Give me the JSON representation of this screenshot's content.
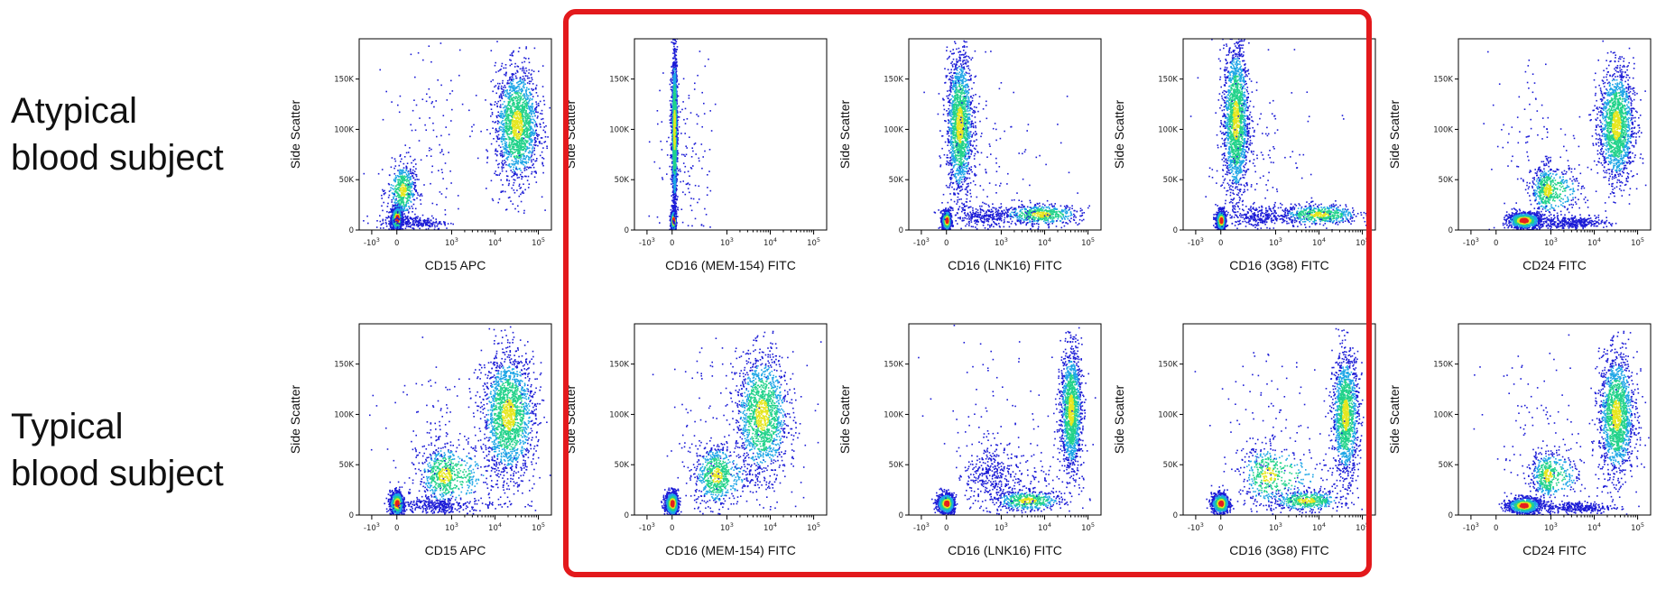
{
  "row_labels": [
    {
      "line1": "Atypical",
      "line2": "blood subject"
    },
    {
      "line1": "Typical",
      "line2": "blood subject"
    }
  ],
  "highlight_color": "#e3191c",
  "density_colors": [
    "#1b1bd6",
    "#1ea6e6",
    "#22d38a",
    "#e6e61e",
    "#e61e1e"
  ],
  "chart_data": [
    {
      "type": "scatter",
      "row": "Atypical blood subject",
      "xlabel": "CD15 APC",
      "ylabel": "Side Scatter",
      "xscale": "biexponential",
      "xticks": [
        "-10^3",
        "0",
        "10^3",
        "10^4",
        "10^5"
      ],
      "yticks": [
        "0",
        "50K",
        "100K",
        "150K"
      ],
      "ylim": [
        0,
        190000
      ],
      "populations": [
        {
          "x_log": 0,
          "y": 12000,
          "sx": 0.12,
          "sy": 6000,
          "n": 1100,
          "hot": true
        },
        {
          "x_log": 0.3,
          "y": 40000,
          "sx": 0.35,
          "sy": 13000,
          "n": 500
        },
        {
          "x_log": 1.0,
          "y": 8000,
          "sx": 0.9,
          "sy": 3500,
          "n": 250
        },
        {
          "x_log": 4.5,
          "y": 105000,
          "sx": 0.25,
          "sy": 28000,
          "n": 1700
        },
        {
          "x_log": 2.5,
          "y": 90000,
          "sx": 1.5,
          "sy": 50000,
          "n": 150
        }
      ]
    },
    {
      "type": "scatter",
      "row": "Atypical blood subject",
      "xlabel": "CD16 (MEM-154) FITC",
      "ylabel": "Side Scatter",
      "xscale": "biexponential",
      "xticks": [
        "-10^3",
        "0",
        "10^3",
        "10^4",
        "10^5"
      ],
      "yticks": [
        "0",
        "50K",
        "100K",
        "150K"
      ],
      "ylim": [
        0,
        190000
      ],
      "populations": [
        {
          "x_log": 0.05,
          "y": 10000,
          "sx": 0.06,
          "sy": 5000,
          "n": 900,
          "hot": true
        },
        {
          "x_log": 0.1,
          "y": 100000,
          "sx": 0.07,
          "sy": 38000,
          "n": 1900
        },
        {
          "x_log": 0.8,
          "y": 60000,
          "sx": 0.8,
          "sy": 50000,
          "n": 150
        }
      ]
    },
    {
      "type": "scatter",
      "row": "Atypical blood subject",
      "xlabel": "CD16 (LNK16) FITC",
      "ylabel": "Side Scatter",
      "xscale": "biexponential",
      "xticks": [
        "-10^3",
        "0",
        "10^3",
        "10^4",
        "10^5"
      ],
      "yticks": [
        "0",
        "50K",
        "100K",
        "150K"
      ],
      "ylim": [
        0,
        190000
      ],
      "populations": [
        {
          "x_log": 0,
          "y": 10000,
          "sx": 0.1,
          "sy": 5000,
          "n": 900,
          "hot": true
        },
        {
          "x_log": 0.7,
          "y": 105000,
          "sx": 0.35,
          "sy": 35000,
          "n": 1700
        },
        {
          "x_log": 3.9,
          "y": 16000,
          "sx": 0.45,
          "sy": 5000,
          "n": 550
        },
        {
          "x_log": 2.2,
          "y": 14000,
          "sx": 0.9,
          "sy": 5000,
          "n": 300
        },
        {
          "x_log": 2.0,
          "y": 70000,
          "sx": 1.3,
          "sy": 45000,
          "n": 120
        }
      ]
    },
    {
      "type": "scatter",
      "row": "Atypical blood subject",
      "xlabel": "CD16 (3G8) FITC",
      "ylabel": "Side Scatter",
      "xscale": "biexponential",
      "xticks": [
        "-10^3",
        "0",
        "10^3",
        "10^4",
        "10^5"
      ],
      "yticks": [
        "0",
        "50K",
        "100K",
        "150K"
      ],
      "ylim": [
        0,
        190000
      ],
      "populations": [
        {
          "x_log": 0,
          "y": 10000,
          "sx": 0.1,
          "sy": 5000,
          "n": 900,
          "hot": true
        },
        {
          "x_log": 0.8,
          "y": 110000,
          "sx": 0.35,
          "sy": 38000,
          "n": 1800
        },
        {
          "x_log": 4.0,
          "y": 16000,
          "sx": 0.45,
          "sy": 5000,
          "n": 550
        },
        {
          "x_log": 2.2,
          "y": 14000,
          "sx": 0.9,
          "sy": 5000,
          "n": 300
        },
        {
          "x_log": 2.0,
          "y": 80000,
          "sx": 1.3,
          "sy": 45000,
          "n": 120
        }
      ]
    },
    {
      "type": "scatter",
      "row": "Atypical blood subject",
      "xlabel": "CD24 FITC",
      "ylabel": "Side Scatter",
      "xscale": "biexponential",
      "xticks": [
        "-10^3",
        "0",
        "10^3",
        "10^4",
        "10^5"
      ],
      "yticks": [
        "0",
        "50K",
        "100K",
        "150K"
      ],
      "ylim": [
        0,
        190000
      ],
      "populations": [
        {
          "x_log": 1.5,
          "y": 10000,
          "sx": 0.45,
          "sy": 4000,
          "n": 1000,
          "hot": true
        },
        {
          "x_log": 2.8,
          "y": 40000,
          "sx": 0.45,
          "sy": 12000,
          "n": 600
        },
        {
          "x_log": 3.5,
          "y": 8000,
          "sx": 0.4,
          "sy": 3000,
          "n": 350
        },
        {
          "x_log": 4.5,
          "y": 105000,
          "sx": 0.2,
          "sy": 28000,
          "n": 1600
        },
        {
          "x_log": 2.5,
          "y": 80000,
          "sx": 1.5,
          "sy": 50000,
          "n": 120
        }
      ]
    },
    {
      "type": "scatter",
      "row": "Typical blood subject",
      "xlabel": "CD15 APC",
      "ylabel": "Side Scatter",
      "xscale": "biexponential",
      "xticks": [
        "-10^3",
        "0",
        "10^3",
        "10^4",
        "10^5"
      ],
      "yticks": [
        "0",
        "50K",
        "100K",
        "150K"
      ],
      "ylim": [
        0,
        190000
      ],
      "populations": [
        {
          "x_log": 0,
          "y": 12000,
          "sx": 0.15,
          "sy": 6000,
          "n": 1000,
          "hot": true
        },
        {
          "x_log": 2.6,
          "y": 40000,
          "sx": 0.7,
          "sy": 15000,
          "n": 700
        },
        {
          "x_log": 4.3,
          "y": 100000,
          "sx": 0.3,
          "sy": 30000,
          "n": 1800
        },
        {
          "x_log": 2.2,
          "y": 10000,
          "sx": 1.0,
          "sy": 4000,
          "n": 300
        },
        {
          "x_log": 2.5,
          "y": 90000,
          "sx": 1.5,
          "sy": 50000,
          "n": 150
        }
      ]
    },
    {
      "type": "scatter",
      "row": "Typical blood subject",
      "xlabel": "CD16 (MEM-154) FITC",
      "ylabel": "Side Scatter",
      "xscale": "biexponential",
      "xticks": [
        "-10^3",
        "0",
        "10^3",
        "10^4",
        "10^5"
      ],
      "yticks": [
        "0",
        "50K",
        "100K",
        "150K"
      ],
      "ylim": [
        0,
        190000
      ],
      "populations": [
        {
          "x_log": 0,
          "y": 12000,
          "sx": 0.15,
          "sy": 6000,
          "n": 900,
          "hot": true
        },
        {
          "x_log": 2.4,
          "y": 40000,
          "sx": 0.6,
          "sy": 15000,
          "n": 700
        },
        {
          "x_log": 3.8,
          "y": 100000,
          "sx": 0.3,
          "sy": 30000,
          "n": 1500
        },
        {
          "x_log": 2.5,
          "y": 80000,
          "sx": 1.5,
          "sy": 50000,
          "n": 120
        }
      ]
    },
    {
      "type": "scatter",
      "row": "Typical blood subject",
      "xlabel": "CD16 (LNK16) FITC",
      "ylabel": "Side Scatter",
      "xscale": "biexponential",
      "xticks": [
        "-10^3",
        "0",
        "10^3",
        "10^4",
        "10^5"
      ],
      "yticks": [
        "0",
        "50K",
        "100K",
        "150K"
      ],
      "ylim": [
        0,
        190000
      ],
      "populations": [
        {
          "x_log": 0,
          "y": 12000,
          "sx": 0.2,
          "sy": 5000,
          "n": 900,
          "hot": true
        },
        {
          "x_log": 3.6,
          "y": 15000,
          "sx": 0.4,
          "sy": 5000,
          "n": 500
        },
        {
          "x_log": 4.6,
          "y": 105000,
          "sx": 0.12,
          "sy": 30000,
          "n": 1500
        },
        {
          "x_log": 2.6,
          "y": 40000,
          "sx": 0.8,
          "sy": 15000,
          "n": 400
        },
        {
          "x_log": 2.5,
          "y": 80000,
          "sx": 1.5,
          "sy": 50000,
          "n": 130
        }
      ]
    },
    {
      "type": "scatter",
      "row": "Typical blood subject",
      "xlabel": "CD16 (3G8) FITC",
      "ylabel": "Side Scatter",
      "xscale": "biexponential",
      "xticks": [
        "-10^3",
        "0",
        "10^3",
        "10^4",
        "10^5"
      ],
      "yticks": [
        "0",
        "50K",
        "100K",
        "150K"
      ],
      "ylim": [
        0,
        190000
      ],
      "populations": [
        {
          "x_log": 0,
          "y": 12000,
          "sx": 0.2,
          "sy": 5000,
          "n": 900,
          "hot": true
        },
        {
          "x_log": 3.7,
          "y": 15000,
          "sx": 0.4,
          "sy": 5000,
          "n": 500
        },
        {
          "x_log": 4.6,
          "y": 100000,
          "sx": 0.15,
          "sy": 30000,
          "n": 1400
        },
        {
          "x_log": 2.6,
          "y": 40000,
          "sx": 0.8,
          "sy": 15000,
          "n": 450
        },
        {
          "x_log": 2.5,
          "y": 80000,
          "sx": 1.5,
          "sy": 50000,
          "n": 130
        }
      ]
    },
    {
      "type": "scatter",
      "row": "Typical blood subject",
      "xlabel": "CD24 FITC",
      "ylabel": "Side Scatter",
      "xscale": "biexponential",
      "xticks": [
        "-10^3",
        "0",
        "10^3",
        "10^4",
        "10^5"
      ],
      "yticks": [
        "0",
        "50K",
        "100K",
        "150K"
      ],
      "ylim": [
        0,
        190000
      ],
      "populations": [
        {
          "x_log": 1.5,
          "y": 10000,
          "sx": 0.45,
          "sy": 4000,
          "n": 900,
          "hot": true
        },
        {
          "x_log": 2.8,
          "y": 40000,
          "sx": 0.45,
          "sy": 12000,
          "n": 500
        },
        {
          "x_log": 3.6,
          "y": 8000,
          "sx": 0.4,
          "sy": 3000,
          "n": 300
        },
        {
          "x_log": 4.5,
          "y": 100000,
          "sx": 0.2,
          "sy": 30000,
          "n": 1600
        },
        {
          "x_log": 2.5,
          "y": 80000,
          "sx": 1.5,
          "sy": 50000,
          "n": 120
        }
      ]
    }
  ]
}
